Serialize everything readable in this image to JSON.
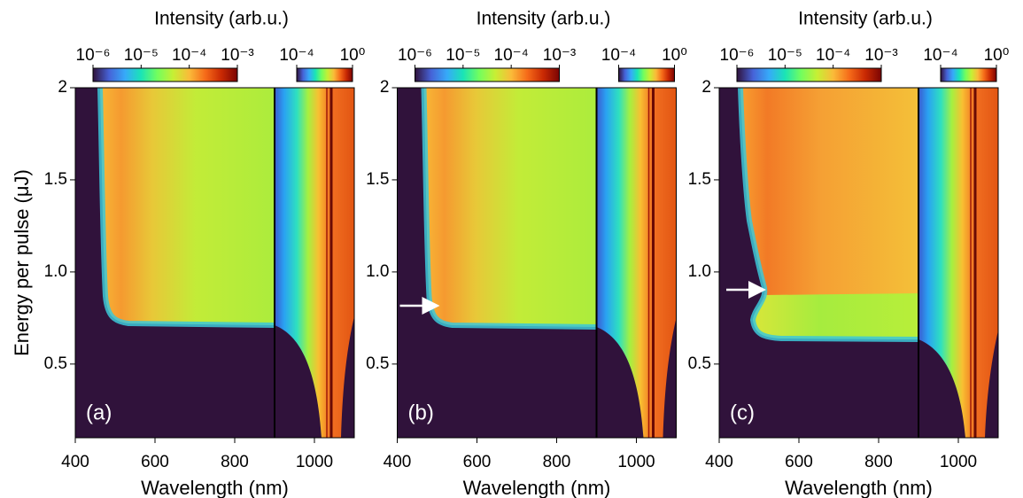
{
  "chart_data": [
    {
      "type": "heatmap",
      "title": "Intensity (arb.u.)",
      "panel_label": "(a)",
      "x_label": "Wavelength (nm)",
      "y_label": "Energy per pulse (μJ)",
      "xlim": [
        400,
        1100
      ],
      "xticks": [
        400,
        600,
        800,
        1000
      ],
      "ylim": [
        0.1,
        2
      ],
      "yticks": [
        0.5,
        {
          "value": 1,
          "label": "1.0"
        },
        1.5,
        2
      ],
      "colormap": [
        "#30123b",
        "#4662d7",
        "#36aaf9",
        "#1ae4b6",
        "#72fe5e",
        "#c7ef34",
        "#fabb39",
        "#f66b19",
        "#c92903",
        "#7a0403"
      ],
      "colorbars": [
        {
          "log": true,
          "lim": [
            1e-06,
            0.001
          ],
          "ticks": [
            {
              "value": 1e-06,
              "label": "10⁻⁶"
            },
            {
              "value": 1e-05,
              "label": "10⁻⁵"
            },
            {
              "value": 0.0001,
              "label": "10⁻⁴"
            },
            {
              "value": 0.001,
              "label": "10⁻³"
            }
          ]
        },
        {
          "log": true,
          "lim": [
            0.0001,
            1
          ],
          "ticks": [
            {
              "value": 0.0001,
              "label": "10⁻⁴"
            },
            {
              "value": 1,
              "label": "10⁰"
            }
          ]
        }
      ]
    },
    {
      "type": "heatmap",
      "title": "Intensity (arb.u.)",
      "panel_label": "(b)",
      "x_label": "Wavelength (nm)",
      "xlim": [
        400,
        1100
      ],
      "xticks": [
        400,
        600,
        800,
        1000
      ],
      "ylim": [
        0.1,
        2
      ],
      "yticks": [
        0.5,
        {
          "value": 1,
          "label": "1.0"
        },
        1.5,
        2
      ],
      "colormap": [
        "#30123b",
        "#4662d7",
        "#36aaf9",
        "#1ae4b6",
        "#72fe5e",
        "#c7ef34",
        "#fabb39",
        "#f66b19",
        "#c92903",
        "#7a0403"
      ],
      "colorbars": [
        {
          "log": true,
          "lim": [
            1e-06,
            0.001
          ],
          "ticks": [
            {
              "value": 1e-06,
              "label": "10⁻⁶"
            },
            {
              "value": 1e-05,
              "label": "10⁻⁵"
            },
            {
              "value": 0.0001,
              "label": "10⁻⁴"
            },
            {
              "value": 0.001,
              "label": "10⁻³"
            }
          ]
        },
        {
          "log": true,
          "lim": [
            0.0001,
            1
          ],
          "ticks": [
            {
              "value": 0.0001,
              "label": "10⁻⁴"
            },
            {
              "value": 1,
              "label": "10⁰"
            }
          ]
        }
      ]
    },
    {
      "type": "heatmap",
      "title": "Intensity (arb.u.)",
      "panel_label": "(c)",
      "x_label": "Wavelength (nm)",
      "xlim": [
        400,
        1100
      ],
      "xticks": [
        400,
        600,
        800,
        1000
      ],
      "ylim": [
        0.1,
        2
      ],
      "yticks": [
        0.5,
        {
          "value": 1,
          "label": "1.0"
        },
        1.5,
        2
      ],
      "colormap": [
        "#30123b",
        "#4662d7",
        "#36aaf9",
        "#1ae4b6",
        "#72fe5e",
        "#c7ef34",
        "#fabb39",
        "#f66b19",
        "#c92903",
        "#7a0403"
      ],
      "colorbars": [
        {
          "log": true,
          "lim": [
            1e-06,
            0.001
          ],
          "ticks": [
            {
              "value": 1e-06,
              "label": "10⁻⁶"
            },
            {
              "value": 1e-05,
              "label": "10⁻⁵"
            },
            {
              "value": 0.0001,
              "label": "10⁻⁴"
            },
            {
              "value": 0.001,
              "label": "10⁻³"
            }
          ]
        },
        {
          "log": true,
          "lim": [
            0.0001,
            1
          ],
          "ticks": [
            {
              "value": 0.0001,
              "label": "10⁻⁴"
            },
            {
              "value": 1,
              "label": "10⁰"
            }
          ]
        }
      ]
    }
  ]
}
